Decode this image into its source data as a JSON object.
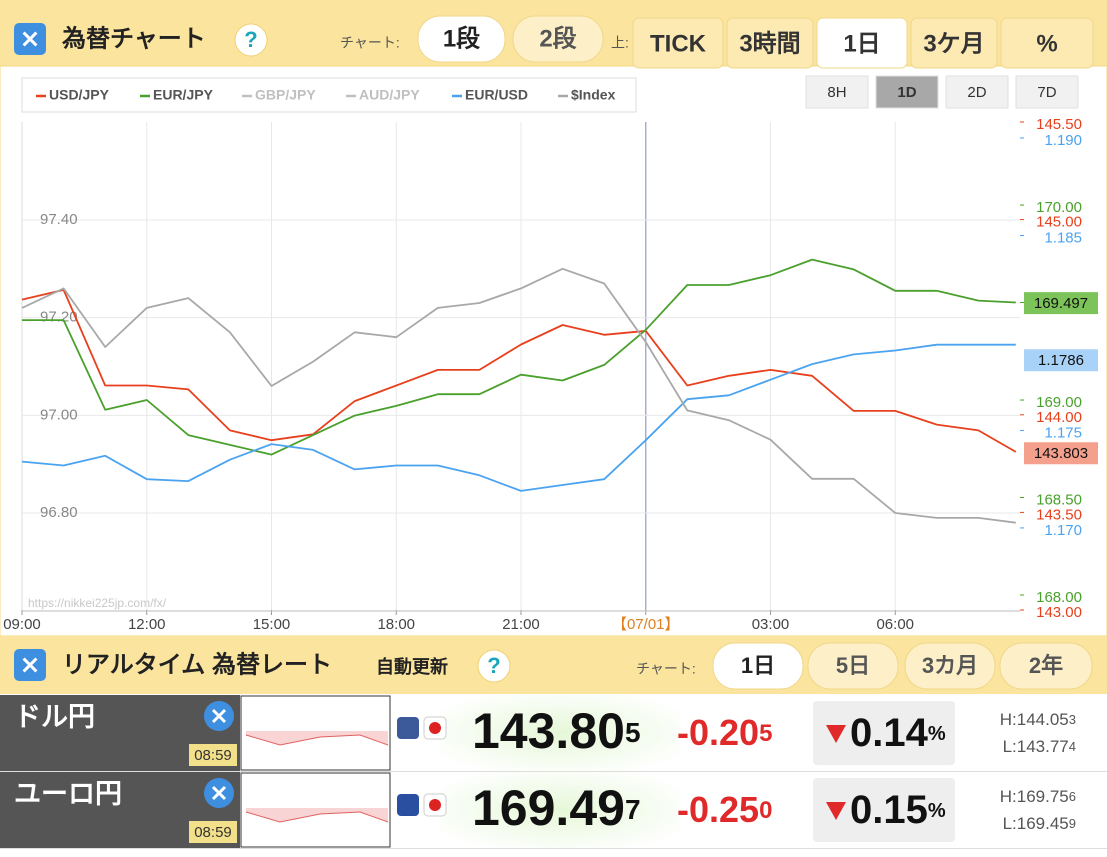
{
  "header": {
    "title": "為替チャート",
    "help": "?",
    "chart_label": "チャート:",
    "row_buttons": [
      "1段",
      "2段"
    ],
    "top_label": "上:",
    "tabs": [
      "TICK",
      "3時間",
      "1日",
      "3ケ月",
      "%"
    ],
    "active_tab": 2
  },
  "range_buttons": [
    "8H",
    "1D",
    "2D",
    "7D"
  ],
  "active_range": 1,
  "chart_data": {
    "type": "line",
    "source": "https://nikkei225jp.com/fx/",
    "x": [
      0,
      1,
      2,
      3,
      4,
      5,
      6,
      7,
      8,
      9,
      10,
      11,
      12,
      13,
      14,
      15,
      16,
      17,
      18,
      19,
      20,
      21,
      22,
      23,
      23.9
    ],
    "xlim": [
      0,
      24
    ],
    "xticks": [
      {
        "value": 0,
        "label": "09:00"
      },
      {
        "value": 3,
        "label": "12:00"
      },
      {
        "value": 6,
        "label": "15:00"
      },
      {
        "value": 9,
        "label": "18:00"
      },
      {
        "value": 12,
        "label": "21:00"
      },
      {
        "value": 15,
        "label": "【07/01】"
      },
      {
        "value": 18,
        "label": "03:00"
      },
      {
        "value": 21,
        "label": "06:00"
      }
    ],
    "highlight_xtick": 5,
    "highlight_color": "#e08020",
    "grid": true,
    "series": [
      {
        "name": "USD/JPY",
        "color": "#e8401c",
        "axis": "right",
        "ylim": [
          143.0,
          145.5
        ],
        "yticks": [
          {
            "value": 145.5,
            "label": "145.50"
          },
          {
            "value": 145,
            "label": "145.00"
          },
          {
            "value": 144,
            "label": "144.00"
          },
          {
            "value": 143.5,
            "label": "143.50"
          },
          {
            "value": 143,
            "label": "143.00"
          }
        ],
        "values": [
          144.59,
          144.64,
          144.15,
          144.15,
          144.13,
          143.92,
          143.87,
          143.9,
          144.07,
          144.15,
          144.23,
          144.23,
          144.36,
          144.46,
          144.41,
          144.43,
          144.15,
          144.2,
          144.23,
          144.2,
          144.02,
          144.02,
          143.95,
          143.92,
          143.81
        ],
        "current": 143.803,
        "current_bg": "#f4a08c"
      },
      {
        "name": "EUR/JPY",
        "color": "#4aa02c",
        "axis": "right",
        "ylim": [
          167.923,
          170.426
        ],
        "yticks": [
          {
            "value": 170,
            "label": "170.00"
          },
          {
            "value": 169.5,
            "label": "169.50"
          },
          {
            "value": 169,
            "label": "169.00"
          },
          {
            "value": 168.5,
            "label": "168.50"
          },
          {
            "value": 168,
            "label": "168.00"
          }
        ],
        "values": [
          169.41,
          169.41,
          168.95,
          169.0,
          168.82,
          168.77,
          168.72,
          168.82,
          168.92,
          168.97,
          169.03,
          169.03,
          169.13,
          169.1,
          169.18,
          169.36,
          169.59,
          169.59,
          169.64,
          169.72,
          169.67,
          169.56,
          169.56,
          169.51,
          169.5
        ],
        "current": 169.497,
        "current_bg": "#7cc45a"
      },
      {
        "name": "GBP/JPY",
        "color": "#c0c0c0",
        "visible": false
      },
      {
        "name": "AUD/JPY",
        "color": "#c0c0c0",
        "visible": false
      },
      {
        "name": "EUR/USD",
        "color": "#4ba3f0",
        "axis": "right",
        "ylim": [
          1.16579,
          1.19082
        ],
        "yticks": [
          {
            "value": 1.19,
            "label": "1.190"
          },
          {
            "value": 1.185,
            "label": "1.185"
          },
          {
            "value": 1.175,
            "label": "1.175"
          },
          {
            "value": 1.17,
            "label": "1.170"
          }
        ],
        "values": [
          1.1734,
          1.1732,
          1.1737,
          1.1725,
          1.1724,
          1.1735,
          1.1743,
          1.174,
          1.173,
          1.1732,
          1.1732,
          1.1727,
          1.1719,
          1.1722,
          1.1725,
          1.1745,
          1.1766,
          1.1768,
          1.1776,
          1.1784,
          1.1789,
          1.1791,
          1.1794,
          1.1794,
          1.1794
        ],
        "current": 1.1786,
        "current_bg": "#a8d2f8"
      },
      {
        "name": "$Index",
        "color": "#a8a8a8",
        "axis": "left",
        "ylim": [
          96.6013,
          97.6007
        ],
        "yticks": [
          {
            "value": 97.4,
            "label": "97.40"
          },
          {
            "value": 97.2,
            "label": "97.20"
          },
          {
            "value": 97,
            "label": "97.00"
          },
          {
            "value": 96.8,
            "label": "96.80"
          }
        ],
        "values": [
          97.22,
          97.26,
          97.14,
          97.22,
          97.24,
          97.17,
          97.06,
          97.11,
          97.17,
          97.16,
          97.22,
          97.23,
          97.26,
          97.3,
          97.27,
          97.15,
          97.01,
          96.99,
          96.95,
          96.87,
          96.87,
          96.8,
          96.79,
          96.79,
          96.78
        ]
      }
    ]
  },
  "rate_header": {
    "title": "リアルタイム 為替レート",
    "auto": "自動更新",
    "help": "?",
    "chart_label": "チャート:",
    "buttons": [
      "1日",
      "5日",
      "3カ月",
      "2年"
    ],
    "active": 0
  },
  "rows": [
    {
      "name": "ドル円",
      "time": "08:59",
      "rate": "143.80",
      "rate_small": "5",
      "change": "-0.20",
      "change_small": "5",
      "pct": "0.14",
      "pct_unit": "%",
      "high": "H:144.05",
      "high_small": "3",
      "low": "L:143.77",
      "low_small": "4"
    },
    {
      "name": "ユーロ円",
      "time": "08:59",
      "rate": "169.49",
      "rate_small": "7",
      "change": "-0.25",
      "change_small": "0",
      "pct": "0.15",
      "pct_unit": "%",
      "high": "H:169.75",
      "high_small": "6",
      "low": "L:169.45",
      "low_small": "9"
    }
  ]
}
